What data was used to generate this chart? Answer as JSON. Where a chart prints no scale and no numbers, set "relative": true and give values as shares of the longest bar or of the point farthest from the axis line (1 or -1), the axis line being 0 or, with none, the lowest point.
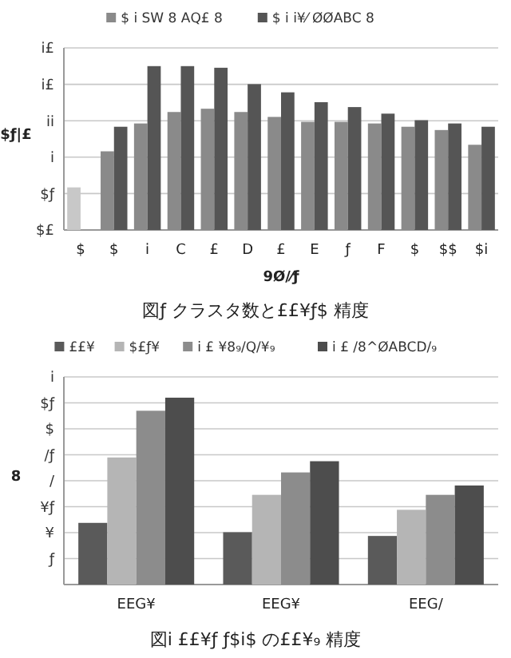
{
  "chart_data": [
    {
      "type": "bar",
      "title": "図ƒ クラスタ数と££¥ƒ$ 精度",
      "xlabel": "9Ø/⁄ƒ",
      "ylabel": "$ƒ|£",
      "relative": true,
      "categories": [
        "$",
        "$",
        "i",
        "C",
        "£",
        "D",
        "£",
        "E",
        "ƒ",
        "F",
        "$",
        "$$",
        "$i"
      ],
      "series": [
        {
          "name": "$ i SW 8 ΑQ£ 8",
          "color": "#8a8a8a",
          "colors": [
            "#c8c8c8",
            "#8a8a8a",
            "#8a8a8a",
            "#8a8a8a",
            "#8a8a8a",
            "#8a8a8a",
            "#8a8a8a",
            "#8a8a8a",
            "#8a8a8a",
            "#8a8a8a",
            "#8a8a8a",
            "#8a8a8a",
            "#8a8a8a"
          ],
          "values": [
            0.26,
            0.48,
            0.65,
            0.72,
            0.74,
            0.72,
            0.69,
            0.66,
            0.66,
            0.65,
            0.63,
            0.61,
            0.52
          ]
        },
        {
          "name": "$ i i¥⁄ ØØABC 8",
          "color": "#555555",
          "values": [
            null,
            0.63,
            1,
            1,
            0.99,
            0.89,
            0.84,
            0.78,
            0.75,
            0.71,
            0.67,
            0.65,
            0.63
          ]
        }
      ],
      "annotations": [
        "$£",
        "$ƒ",
        "i",
        "ii",
        "i£",
        "i£"
      ],
      "grid": "y",
      "legend": "top"
    },
    {
      "type": "bar",
      "title": "図i ££¥ƒ ƒ$i$ の££¥₉ 精度",
      "ylabel": "8",
      "relative": true,
      "categories": [
        "EEG¥",
        "EEG¥",
        "EEG/"
      ],
      "series": [
        {
          "name": "££¥",
          "color": "#5a5a5a",
          "values": [
            0.33,
            0.28,
            0.26
          ]
        },
        {
          "name": "$£ƒ¥",
          "color": "#b5b5b5",
          "values": [
            0.68,
            0.48,
            0.4
          ]
        },
        {
          "name": "i £ ¥8₉/Q/¥₉",
          "color": "#8c8c8c",
          "values": [
            0.93,
            0.6,
            0.48
          ]
        },
        {
          "name": "i £ /8^ØABCD/₉",
          "color": "#4d4d4d",
          "values": [
            1,
            0.66,
            0.53
          ]
        }
      ],
      "annotations": [
        "ƒ",
        "¥",
        "¥ƒ",
        "/",
        "/ƒ",
        "$",
        "$ƒ",
        "i"
      ],
      "grid": "y",
      "legend": "top"
    }
  ]
}
